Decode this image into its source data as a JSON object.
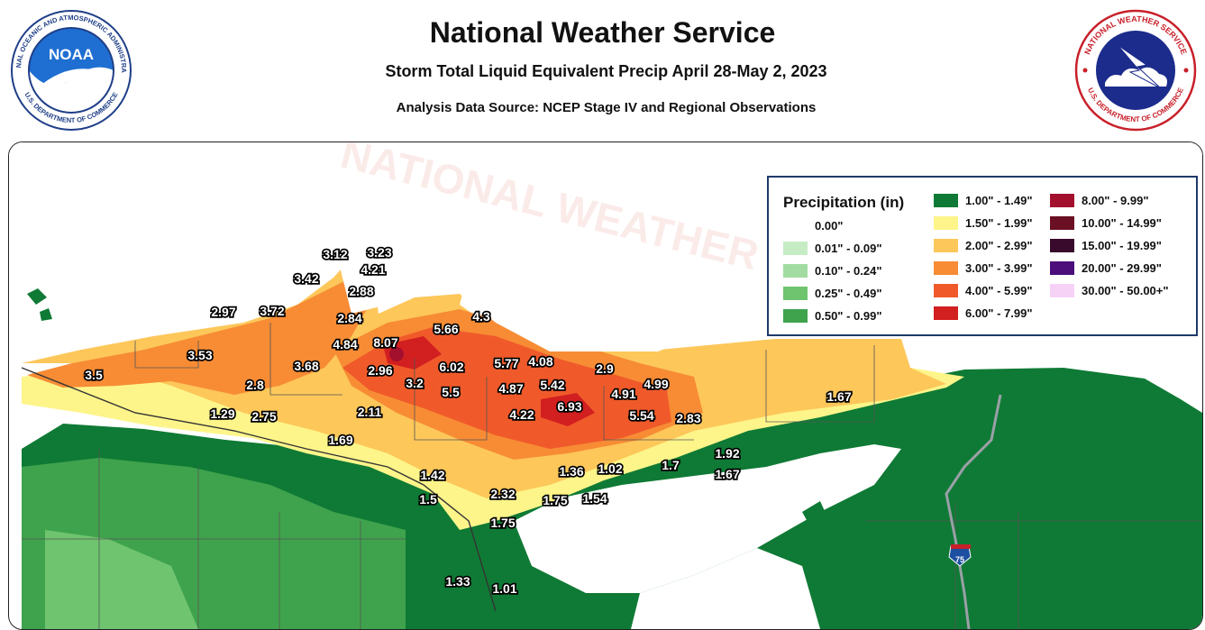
{
  "header": {
    "title": "National Weather Service",
    "subtitle": "Storm Total Liquid Equivalent Precip April 28-May 2, 2023",
    "source": "Analysis Data Source: NCEP Stage IV and Regional Observations"
  },
  "logos": {
    "noaa": {
      "text": "NOAA",
      "ring_text": "NATIONAL OCEANIC AND ATMOSPHERIC ADMINISTRATION",
      "bottom_text": "U.S. DEPARTMENT OF COMMERCE"
    },
    "nws": {
      "ring_text": "NATIONAL WEATHER SERVICE",
      "bottom_text": "U.S. DEPARTMENT OF COMMERCE"
    }
  },
  "legend": {
    "title": "Precipitation (in)",
    "items": [
      {
        "label": "0.00\"",
        "color": "#ffffff"
      },
      {
        "label": "0.01\" - 0.09\"",
        "color": "#c6ecc6"
      },
      {
        "label": "0.10\" - 0.24\"",
        "color": "#a2dca2"
      },
      {
        "label": "0.25\" - 0.49\"",
        "color": "#6fc46f"
      },
      {
        "label": "0.50\" - 0.99\"",
        "color": "#3fa34d"
      },
      {
        "label": "1.00\" - 1.49\"",
        "color": "#0f7a35"
      },
      {
        "label": "1.50\" - 1.99\"",
        "color": "#fdf58a"
      },
      {
        "label": "2.00\" - 2.99\"",
        "color": "#fdc75a"
      },
      {
        "label": "3.00\" - 3.99\"",
        "color": "#f78c35"
      },
      {
        "label": "4.00\" - 5.99\"",
        "color": "#f05a2a"
      },
      {
        "label": "6.00\" - 7.99\"",
        "color": "#d21f1f"
      },
      {
        "label": "8.00\" - 9.99\"",
        "color": "#a3102e"
      },
      {
        "label": "10.00\" - 14.99\"",
        "color": "#6b0f24"
      },
      {
        "label": "15.00\" - 19.99\"",
        "color": "#3a0a2c"
      },
      {
        "label": "20.00\" - 29.99\"",
        "color": "#4b0e7a"
      },
      {
        "label": "30.00\" - 50.00+\"",
        "color": "#f7d2f7"
      }
    ]
  },
  "map": {
    "watermark_text": "NATIONAL WEATHER SERVICE",
    "interstate_label": "75",
    "observations": [
      {
        "v": "3.23"
      },
      {
        "v": "3.12"
      },
      {
        "v": "4.21"
      },
      {
        "v": "3.42"
      },
      {
        "v": "2.88"
      },
      {
        "v": "2.97"
      },
      {
        "v": "3.72"
      },
      {
        "v": "2.84"
      },
      {
        "v": "4.3"
      },
      {
        "v": "5.66"
      },
      {
        "v": "4.84"
      },
      {
        "v": "8.07"
      },
      {
        "v": "3.53"
      },
      {
        "v": "3.68"
      },
      {
        "v": "2.96"
      },
      {
        "v": "6.02"
      },
      {
        "v": "5.77"
      },
      {
        "v": "4.08"
      },
      {
        "v": "2.9"
      },
      {
        "v": "3.5"
      },
      {
        "v": "2.8"
      },
      {
        "v": "3.2"
      },
      {
        "v": "5.5"
      },
      {
        "v": "4.87"
      },
      {
        "v": "5.42"
      },
      {
        "v": "4.91"
      },
      {
        "v": "4.99"
      },
      {
        "v": "1.67"
      },
      {
        "v": "1.29"
      },
      {
        "v": "2.75"
      },
      {
        "v": "2.11"
      },
      {
        "v": "4.22"
      },
      {
        "v": "6.93"
      },
      {
        "v": "5.54"
      },
      {
        "v": "2.83"
      },
      {
        "v": "1.69"
      },
      {
        "v": "1.92"
      },
      {
        "v": "1.67"
      },
      {
        "v": "1.42"
      },
      {
        "v": "1.36"
      },
      {
        "v": "1.02"
      },
      {
        "v": "1.7"
      },
      {
        "v": "1.5"
      },
      {
        "v": "2.32"
      },
      {
        "v": "1.75"
      },
      {
        "v": "1.54"
      },
      {
        "v": "1.75"
      },
      {
        "v": "1.33"
      },
      {
        "v": "1.01"
      }
    ]
  }
}
